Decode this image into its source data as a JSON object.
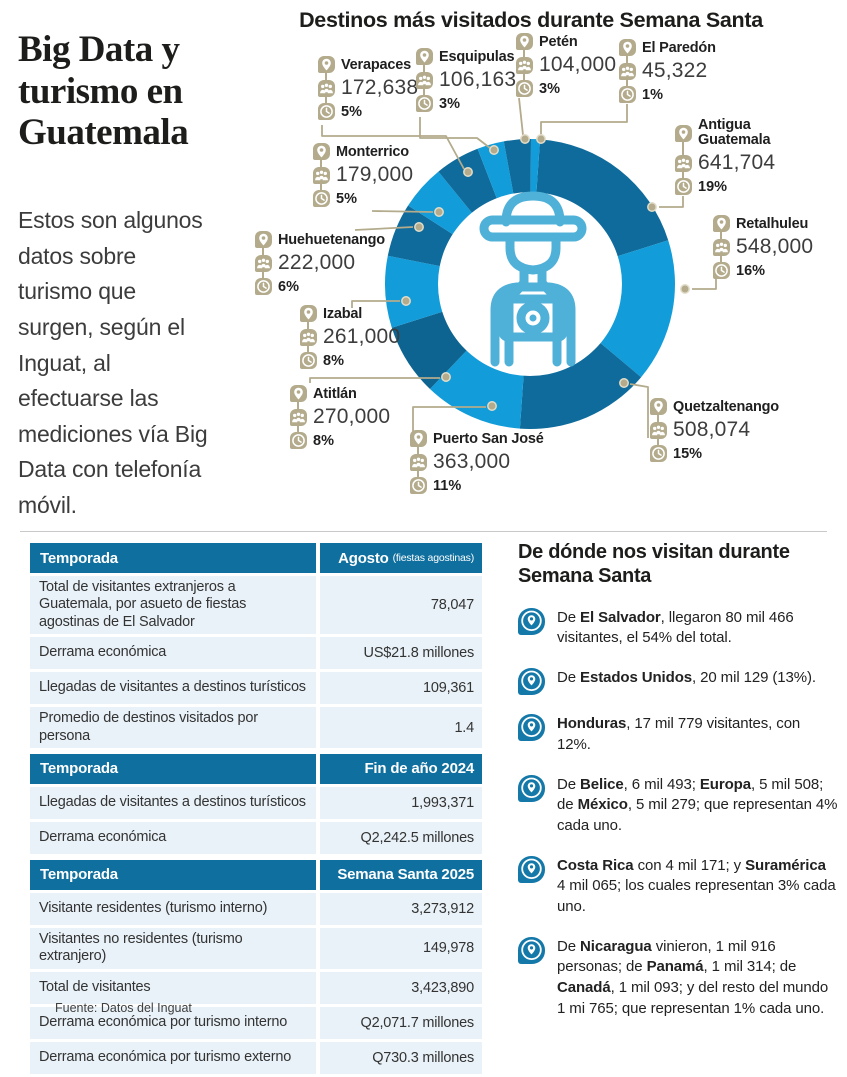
{
  "palette": {
    "ink": "#1d1d1b",
    "body-text": "#3c3c3c",
    "beige": "#b3ab8c",
    "table-header": "#0f6f9f",
    "row-bg": "#e9f2f8",
    "pin-blue": "#1478a9",
    "center-icon": "#4fb0d8",
    "divider": "#c9c9c9"
  },
  "header": {
    "title": "Big Data y turismo en Guatemala",
    "intro": "Estos son algunos datos sobre turismo que surgen, según el Inguat, al efectuarse las mediciones vía Big Data con telefonía móvil."
  },
  "chart_data": {
    "type": "pie",
    "style": "donut",
    "title": "Destinos más visitados durante Semana Santa",
    "order": "clockwise-from-top",
    "segments": [
      {
        "name": "Antigua Guatemala",
        "visitors_label": "641,704",
        "visitors": 641704,
        "percent_label": "19%",
        "pct": 19,
        "color": "#0e6b9b"
      },
      {
        "name": "Retalhuleu",
        "visitors_label": "548,000",
        "visitors": 548000,
        "percent_label": "16%",
        "pct": 16,
        "color": "#129cd9"
      },
      {
        "name": "Quetzaltenango",
        "visitors_label": "508,074",
        "visitors": 508074,
        "percent_label": "15%",
        "pct": 15,
        "color": "#0e6b9b"
      },
      {
        "name": "Puerto San José",
        "visitors_label": "363,000",
        "visitors": 363000,
        "percent_label": "11%",
        "pct": 11,
        "color": "#129cd9"
      },
      {
        "name": "Atitlán",
        "visitors_label": "270,000",
        "visitors": 270000,
        "percent_label": "8%",
        "pct": 8,
        "color": "#0d6490"
      },
      {
        "name": "Izabal",
        "visitors_label": "261,000",
        "visitors": 261000,
        "percent_label": "8%",
        "pct": 8,
        "color": "#129cd9"
      },
      {
        "name": "Huehuetenango",
        "visitors_label": "222,000",
        "visitors": 222000,
        "percent_label": "6%",
        "pct": 6,
        "color": "#0e6b9b"
      },
      {
        "name": "Monterrico",
        "visitors_label": "179,000",
        "visitors": 179000,
        "percent_label": "5%",
        "pct": 5,
        "color": "#129cd9"
      },
      {
        "name": "Verapaces",
        "visitors_label": "172,638",
        "visitors": 172638,
        "percent_label": "5%",
        "pct": 5,
        "color": "#0e6b9b"
      },
      {
        "name": "Esquipulas",
        "visitors_label": "106,163",
        "visitors": 106163,
        "percent_label": "3%",
        "pct": 3,
        "color": "#129cd9"
      },
      {
        "name": "Petén",
        "visitors_label": "104,000",
        "visitors": 104000,
        "percent_label": "3%",
        "pct": 3,
        "color": "#0e6b9b"
      },
      {
        "name": "El Paredón",
        "visitors_label": "45,322",
        "visitors": 45322,
        "percent_label": "1%",
        "pct": 1,
        "color": "#129cd9"
      }
    ]
  },
  "tables": [
    {
      "season_label": "Temporada",
      "period": "Agosto",
      "period_note": "(fiestas agostinas)",
      "rows": [
        {
          "label": "Total de visitantes extranjeros a Guatemala, por asueto de fiestas agostinas de El Salvador",
          "value": "78,047"
        },
        {
          "label": "Derrama económica",
          "value": "US$21.8 millones"
        },
        {
          "label": "Llegadas de visitantes a destinos turísticos",
          "value": "109,361"
        },
        {
          "label": "Promedio de destinos visitados por persona",
          "value": "1.4"
        }
      ]
    },
    {
      "season_label": "Temporada",
      "period": "Fin de año 2024",
      "rows": [
        {
          "label": "Llegadas de visitantes a destinos turísticos",
          "value": "1,993,371"
        },
        {
          "label": "Derrama económica",
          "value": "Q2,242.5 millones"
        }
      ]
    },
    {
      "season_label": "Temporada",
      "period": "Semana Santa 2025",
      "rows": [
        {
          "label": "Visitante residentes (turismo interno)",
          "value": "3,273,912"
        },
        {
          "label": "Visitantes no residentes (turismo extranjero)",
          "value": "149,978"
        },
        {
          "label": "Total de visitantes",
          "value": "3,423,890"
        },
        {
          "label": "Derrama económica por turismo interno",
          "value": "Q2,071.7 millones"
        },
        {
          "label": "Derrama económica por turismo externo",
          "value": "Q730.3 millones"
        }
      ]
    }
  ],
  "origins": {
    "title": "De dónde nos visitan durante Semana Santa",
    "bullets": [
      {
        "runs": [
          {
            "t": "De "
          },
          {
            "t": "El Salvador",
            "b": true
          },
          {
            "t": ", llegaron 80 mil 466 visitantes, el 54% del total."
          }
        ]
      },
      {
        "runs": [
          {
            "t": "De "
          },
          {
            "t": "Estados Unidos",
            "b": true
          },
          {
            "t": ", 20 mil 129 (13%)."
          }
        ]
      },
      {
        "runs": [
          {
            "t": "Honduras",
            "b": true
          },
          {
            "t": ", 17 mil 779 visitantes, con 12%."
          }
        ]
      },
      {
        "runs": [
          {
            "t": "De "
          },
          {
            "t": "Belice",
            "b": true
          },
          {
            "t": ", 6 mil 493; "
          },
          {
            "t": "Europa",
            "b": true
          },
          {
            "t": ", 5 mil 508; de "
          },
          {
            "t": "México",
            "b": true
          },
          {
            "t": ", 5 mil 279; que representan 4% cada uno."
          }
        ]
      },
      {
        "runs": [
          {
            "t": "Costa Rica",
            "b": true
          },
          {
            "t": " con 4 mil 171; y "
          },
          {
            "t": "Suramérica",
            "b": true
          },
          {
            "t": " 4 mil 065; los cuales representan 3% cada uno."
          }
        ]
      },
      {
        "runs": [
          {
            "t": "De "
          },
          {
            "t": "Nicaragua",
            "b": true
          },
          {
            "t": " vinieron, 1 mil 916 personas; de "
          },
          {
            "t": "Panamá",
            "b": true
          },
          {
            "t": ", 1 mil 314; de "
          },
          {
            "t": "Canadá",
            "b": true
          },
          {
            "t": ", 1 mil 093; y del resto del mundo 1 mi 765; que representan 1% cada uno."
          }
        ]
      }
    ]
  },
  "footer": {
    "source": "Fuente: Datos del Inguat"
  }
}
